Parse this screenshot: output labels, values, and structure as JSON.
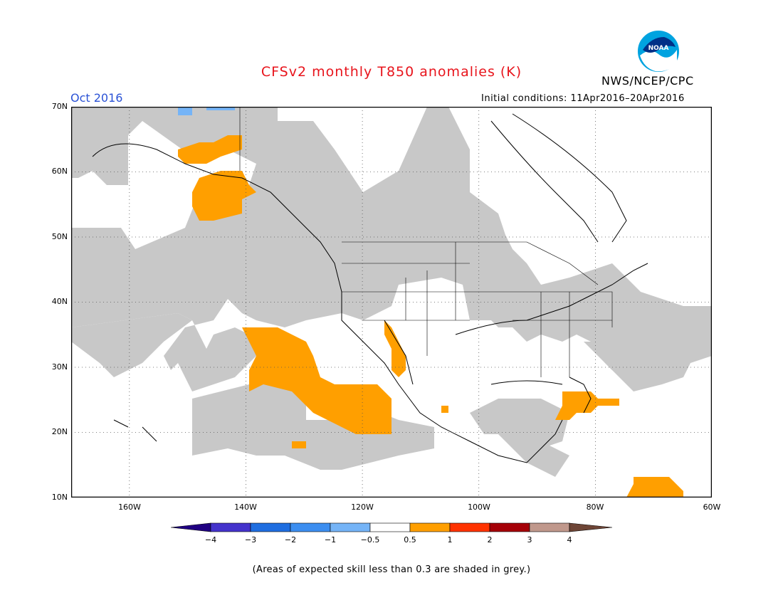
{
  "title": "CFSv2 monthly T850 anomalies (K)",
  "agency": "NWS/NCEP/CPC",
  "logo_text": "NOAA",
  "valid_month": "Oct 2016",
  "initial_conditions": "Initial conditions: 11Apr2016–20Apr2016",
  "map": {
    "lat_labels": [
      "70N",
      "60N",
      "50N",
      "40N",
      "30N",
      "20N",
      "10N"
    ],
    "lon_labels": [
      "160W",
      "140W",
      "120W",
      "100W",
      "80W",
      "60W"
    ],
    "lat_range": [
      10,
      70
    ],
    "lon_range": [
      -170,
      -60
    ]
  },
  "colorbar": {
    "labels": [
      "−4",
      "−3",
      "−2",
      "−1",
      "−0.5",
      "0.5",
      "1",
      "2",
      "3",
      "4"
    ],
    "colors": [
      "#200082",
      "#4433cc",
      "#1f6ee0",
      "#3c8ef0",
      "#75b4f7",
      "#ffffff",
      "#ff9f00",
      "#ff3300",
      "#a50008",
      "#c0988c",
      "#6e4536"
    ]
  },
  "skill_shading_color": "#c8c8c8",
  "note": "(Areas of expected skill less than 0.3 are shaded in grey.)"
}
